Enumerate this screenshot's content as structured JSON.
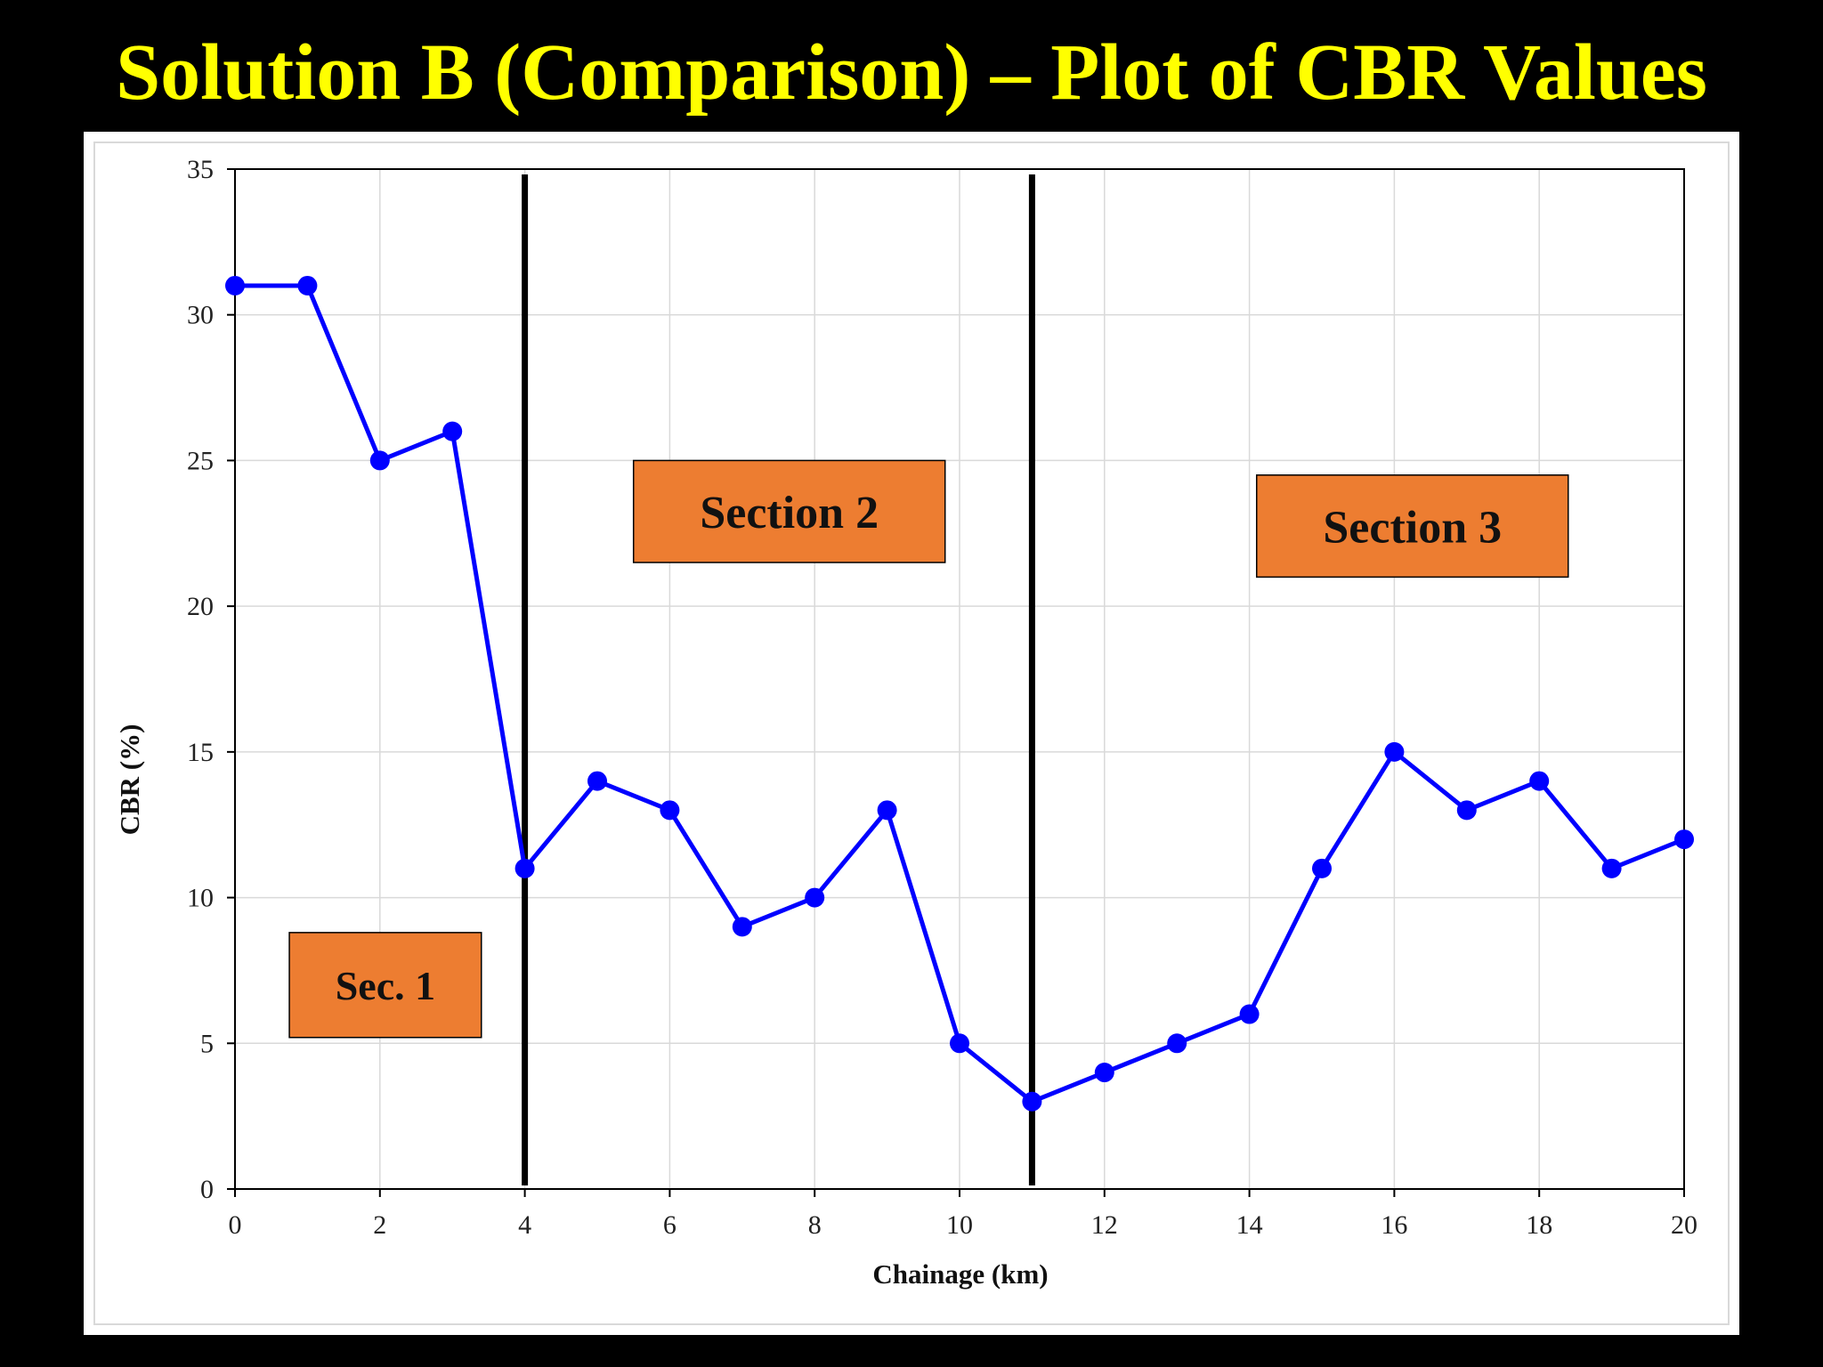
{
  "slide": {
    "title": "Solution B (Comparison) – Plot of CBR Values"
  },
  "colors": {
    "background": "#000000",
    "title": "#ffff00",
    "series": "#0000ff",
    "section_box": "#ed7d31",
    "divider": "#000000"
  },
  "chart_data": {
    "type": "line",
    "title": "",
    "xlabel": "Chainage (km)",
    "ylabel": "CBR (%)",
    "xlim": [
      0,
      20
    ],
    "ylim": [
      0,
      35
    ],
    "x_ticks": [
      0,
      2,
      4,
      6,
      8,
      10,
      12,
      14,
      16,
      18,
      20
    ],
    "y_ticks": [
      0,
      5,
      10,
      15,
      20,
      25,
      30,
      35
    ],
    "grid": true,
    "legend": "none",
    "series": [
      {
        "x": [
          0,
          1,
          2,
          3,
          4,
          5,
          6,
          7,
          8,
          9,
          10,
          11,
          12,
          13,
          14,
          15,
          16,
          17,
          18,
          19,
          20
        ],
        "values": [
          31,
          31,
          25,
          26,
          11,
          14,
          13,
          9,
          10,
          13,
          5,
          3,
          4,
          5,
          6,
          11,
          15,
          13,
          14,
          11,
          12
        ],
        "color": "#0000ff",
        "marker": "circle"
      }
    ],
    "section_dividers": [
      4,
      11
    ],
    "section_labels": [
      {
        "text": "Sec. 1",
        "x_from": 0.75,
        "x_to": 3.4,
        "y_from": 5.2,
        "y_to": 8.8
      },
      {
        "text": "Section 2",
        "x_from": 5.5,
        "x_to": 9.8,
        "y_from": 21.5,
        "y_to": 25.0
      },
      {
        "text": "Section 3",
        "x_from": 14.1,
        "x_to": 18.4,
        "y_from": 21.0,
        "y_to": 24.5
      }
    ]
  }
}
